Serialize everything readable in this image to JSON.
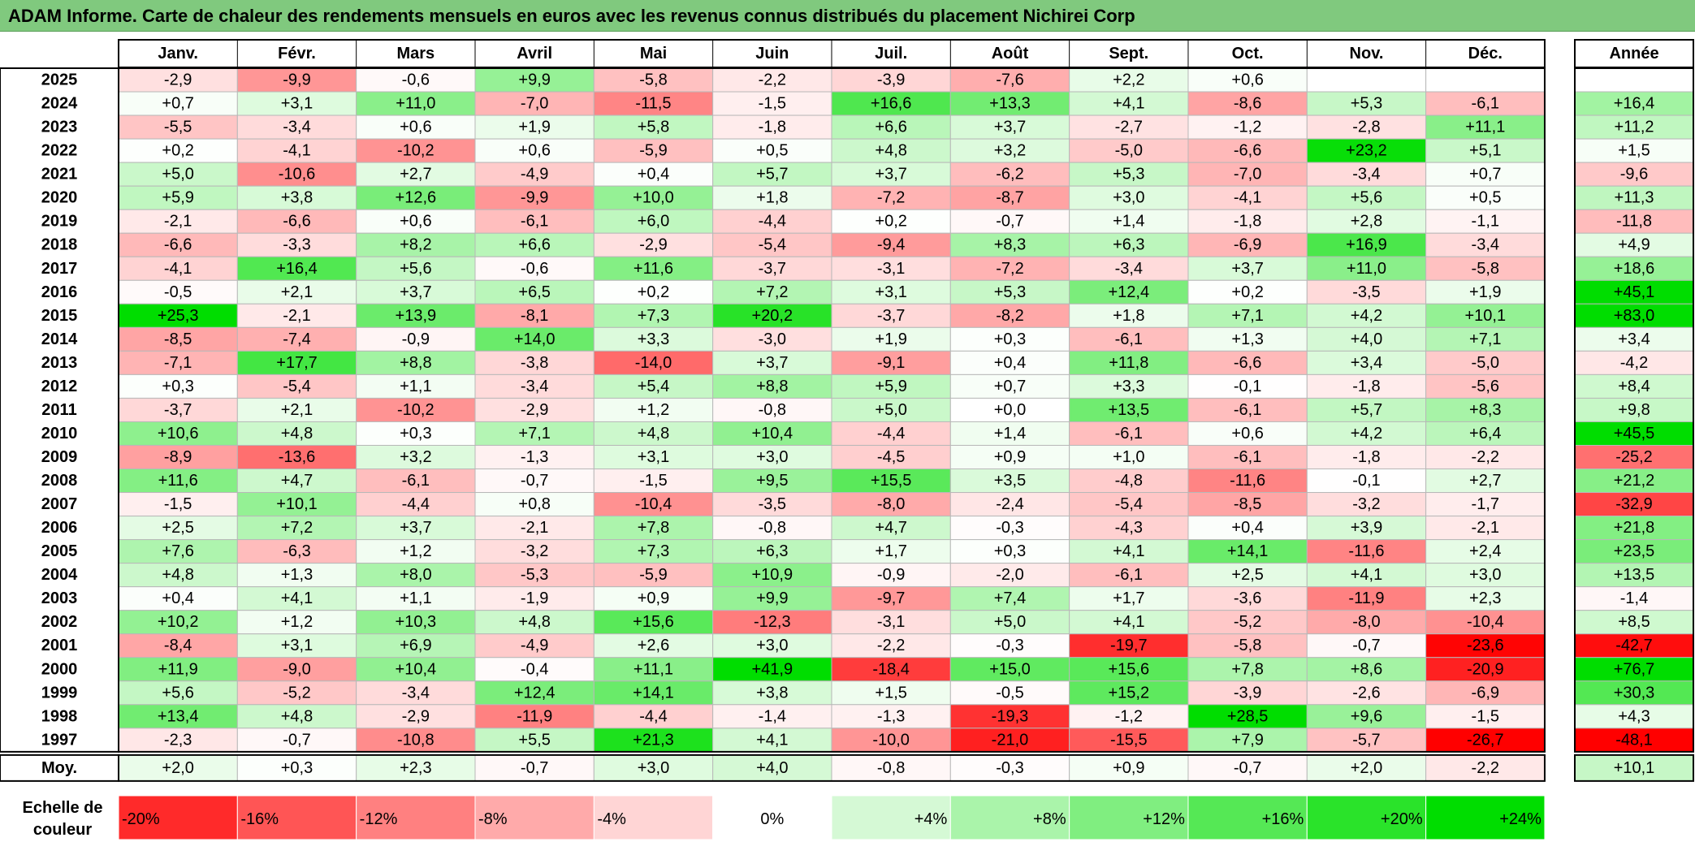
{
  "title": "ADAM Informe. Carte de chaleur des rendements mensuels en euros avec les revenus connus distribués du placement Nichirei Corp",
  "chart_data": {
    "type": "heatmap",
    "title": "ADAM Informe. Carte de chaleur des rendements mensuels en euros avec les revenus connus distribués du placement Nichirei Corp",
    "months": [
      "Janv.",
      "Févr.",
      "Mars",
      "Avril",
      "Mai",
      "Juin",
      "Juil.",
      "Août",
      "Sept.",
      "Oct.",
      "Nov.",
      "Déc."
    ],
    "year_header": "Année",
    "rows": [
      {
        "year": "2025",
        "values": [
          "-2,9",
          "-9,9",
          "-0,6",
          "+9,9",
          "-5,8",
          "-2,2",
          "-3,9",
          "-7,6",
          "+2,2",
          "+0,6",
          "",
          ""
        ],
        "annual": ""
      },
      {
        "year": "2024",
        "values": [
          "+0,7",
          "+3,1",
          "+11,0",
          "-7,0",
          "-11,5",
          "-1,5",
          "+16,6",
          "+13,3",
          "+4,1",
          "-8,6",
          "+5,3",
          "-6,1"
        ],
        "annual": "+16,4"
      },
      {
        "year": "2023",
        "values": [
          "-5,5",
          "-3,4",
          "+0,6",
          "+1,9",
          "+5,8",
          "-1,8",
          "+6,6",
          "+3,7",
          "-2,7",
          "-1,2",
          "-2,8",
          "+11,1"
        ],
        "annual": "+11,2"
      },
      {
        "year": "2022",
        "values": [
          "+0,2",
          "-4,1",
          "-10,2",
          "+0,6",
          "-5,9",
          "+0,5",
          "+4,8",
          "+3,2",
          "-5,0",
          "-6,6",
          "+23,2",
          "+5,1"
        ],
        "annual": "+1,5"
      },
      {
        "year": "2021",
        "values": [
          "+5,0",
          "-10,6",
          "+2,7",
          "-4,9",
          "+0,4",
          "+5,7",
          "+3,7",
          "-6,2",
          "+5,3",
          "-7,0",
          "-3,4",
          "+0,7"
        ],
        "annual": "-9,6"
      },
      {
        "year": "2020",
        "values": [
          "+5,9",
          "+3,8",
          "+12,6",
          "-9,9",
          "+10,0",
          "+1,8",
          "-7,2",
          "-8,7",
          "+3,0",
          "-4,1",
          "+5,6",
          "+0,5"
        ],
        "annual": "+11,3"
      },
      {
        "year": "2019",
        "values": [
          "-2,1",
          "-6,6",
          "+0,6",
          "-6,1",
          "+6,0",
          "-4,4",
          "+0,2",
          "-0,7",
          "+1,4",
          "-1,8",
          "+2,8",
          "-1,1"
        ],
        "annual": "-11,8"
      },
      {
        "year": "2018",
        "values": [
          "-6,6",
          "-3,3",
          "+8,2",
          "+6,6",
          "-2,9",
          "-5,4",
          "-9,4",
          "+8,3",
          "+6,3",
          "-6,9",
          "+16,9",
          "-3,4"
        ],
        "annual": "+4,9"
      },
      {
        "year": "2017",
        "values": [
          "-4,1",
          "+16,4",
          "+5,6",
          "-0,6",
          "+11,6",
          "-3,7",
          "-3,1",
          "-7,2",
          "-3,4",
          "+3,7",
          "+11,0",
          "-5,8"
        ],
        "annual": "+18,6"
      },
      {
        "year": "2016",
        "values": [
          "-0,5",
          "+2,1",
          "+3,7",
          "+6,5",
          "+0,2",
          "+7,2",
          "+3,1",
          "+5,3",
          "+12,4",
          "+0,2",
          "-3,5",
          "+1,9"
        ],
        "annual": "+45,1"
      },
      {
        "year": "2015",
        "values": [
          "+25,3",
          "-2,1",
          "+13,9",
          "-8,1",
          "+7,3",
          "+20,2",
          "-3,7",
          "-8,2",
          "+1,8",
          "+7,1",
          "+4,2",
          "+10,1"
        ],
        "annual": "+83,0"
      },
      {
        "year": "2014",
        "values": [
          "-8,5",
          "-7,4",
          "-0,9",
          "+14,0",
          "+3,3",
          "-3,0",
          "+1,9",
          "+0,3",
          "-6,1",
          "+1,3",
          "+4,0",
          "+7,1"
        ],
        "annual": "+3,4"
      },
      {
        "year": "2013",
        "values": [
          "-7,1",
          "+17,7",
          "+8,8",
          "-3,8",
          "-14,0",
          "+3,7",
          "-9,1",
          "+0,4",
          "+11,8",
          "-6,6",
          "+3,4",
          "-5,0"
        ],
        "annual": "-4,2"
      },
      {
        "year": "2012",
        "values": [
          "+0,3",
          "-5,4",
          "+1,1",
          "-3,4",
          "+5,4",
          "+8,8",
          "+5,9",
          "+0,7",
          "+3,3",
          "-0,1",
          "-1,8",
          "-5,6"
        ],
        "annual": "+8,4"
      },
      {
        "year": "2011",
        "values": [
          "-3,7",
          "+2,1",
          "-10,2",
          "-2,9",
          "+1,2",
          "-0,8",
          "+5,0",
          "+0,0",
          "+13,5",
          "-6,1",
          "+5,7",
          "+8,3"
        ],
        "annual": "+9,8"
      },
      {
        "year": "2010",
        "values": [
          "+10,6",
          "+4,8",
          "+0,3",
          "+7,1",
          "+4,8",
          "+10,4",
          "-4,4",
          "+1,4",
          "-6,1",
          "+0,6",
          "+4,2",
          "+6,4"
        ],
        "annual": "+45,5"
      },
      {
        "year": "2009",
        "values": [
          "-8,9",
          "-13,6",
          "+3,2",
          "-1,3",
          "+3,1",
          "+3,0",
          "-4,5",
          "+0,9",
          "+1,0",
          "-6,1",
          "-1,8",
          "-2,2"
        ],
        "annual": "-25,2"
      },
      {
        "year": "2008",
        "values": [
          "+11,6",
          "+4,7",
          "-6,1",
          "-0,7",
          "-1,5",
          "+9,5",
          "+15,5",
          "+3,5",
          "-4,8",
          "-11,6",
          "-0,1",
          "+2,7"
        ],
        "annual": "+21,2"
      },
      {
        "year": "2007",
        "values": [
          "-1,5",
          "+10,1",
          "-4,4",
          "+0,8",
          "-10,4",
          "-3,5",
          "-8,0",
          "-2,4",
          "-5,4",
          "-8,5",
          "-3,2",
          "-1,7"
        ],
        "annual": "-32,9"
      },
      {
        "year": "2006",
        "values": [
          "+2,5",
          "+7,2",
          "+3,7",
          "-2,1",
          "+7,8",
          "-0,8",
          "+4,7",
          "-0,3",
          "-4,3",
          "+0,4",
          "+3,9",
          "-2,1"
        ],
        "annual": "+21,8"
      },
      {
        "year": "2005",
        "values": [
          "+7,6",
          "-6,3",
          "+1,2",
          "-3,2",
          "+7,3",
          "+6,3",
          "+1,7",
          "+0,3",
          "+4,1",
          "+14,1",
          "-11,6",
          "+2,4"
        ],
        "annual": "+23,5"
      },
      {
        "year": "2004",
        "values": [
          "+4,8",
          "+1,3",
          "+8,0",
          "-5,3",
          "-5,9",
          "+10,9",
          "-0,9",
          "-2,0",
          "-6,1",
          "+2,5",
          "+4,1",
          "+3,0"
        ],
        "annual": "+13,5"
      },
      {
        "year": "2003",
        "values": [
          "+0,4",
          "+4,1",
          "+1,1",
          "-1,9",
          "+0,9",
          "+9,9",
          "-9,7",
          "+7,4",
          "+1,7",
          "-3,6",
          "-11,9",
          "+2,3"
        ],
        "annual": "-1,4"
      },
      {
        "year": "2002",
        "values": [
          "+10,2",
          "+1,2",
          "+10,3",
          "+4,8",
          "+15,6",
          "-12,3",
          "-3,1",
          "+5,0",
          "+4,1",
          "-5,2",
          "-8,0",
          "-10,4"
        ],
        "annual": "+8,5"
      },
      {
        "year": "2001",
        "values": [
          "-8,4",
          "+3,1",
          "+6,9",
          "-4,9",
          "+2,6",
          "+3,0",
          "-2,2",
          "-0,3",
          "-19,7",
          "-5,8",
          "-0,7",
          "-23,6"
        ],
        "annual": "-42,7"
      },
      {
        "year": "2000",
        "values": [
          "+11,9",
          "-9,0",
          "+10,4",
          "-0,4",
          "+11,1",
          "+41,9",
          "-18,4",
          "+15,0",
          "+15,6",
          "+7,8",
          "+8,6",
          "-20,9"
        ],
        "annual": "+76,7"
      },
      {
        "year": "1999",
        "values": [
          "+5,6",
          "-5,2",
          "-3,4",
          "+12,4",
          "+14,1",
          "+3,8",
          "+1,5",
          "-0,5",
          "+15,2",
          "-3,9",
          "-2,6",
          "-6,9"
        ],
        "annual": "+30,3"
      },
      {
        "year": "1998",
        "values": [
          "+13,4",
          "+4,8",
          "-2,9",
          "-11,9",
          "-4,4",
          "-1,4",
          "-1,3",
          "-19,3",
          "-1,2",
          "+28,5",
          "+9,6",
          "-1,5"
        ],
        "annual": "+4,3"
      },
      {
        "year": "1997",
        "values": [
          "-2,3",
          "-0,7",
          "-10,8",
          "+5,5",
          "+21,3",
          "+4,1",
          "-10,0",
          "-21,0",
          "-15,5",
          "+7,9",
          "-5,7",
          "-26,7"
        ],
        "annual": "-48,1"
      }
    ],
    "average": {
      "label": "Moy.",
      "values": [
        "+2,0",
        "+0,3",
        "+2,3",
        "-0,7",
        "+3,0",
        "+4,0",
        "-0,8",
        "-0,3",
        "+0,9",
        "-0,7",
        "+2,0",
        "-2,2"
      ],
      "annual": "+10,1"
    },
    "scale": {
      "label_line1": "Echelle de",
      "label_line2": "couleur",
      "steps": [
        {
          "label": "-20%",
          "value": -20
        },
        {
          "label": "-16%",
          "value": -16
        },
        {
          "label": "-12%",
          "value": -12
        },
        {
          "label": "-8%",
          "value": -8
        },
        {
          "label": "-4%",
          "value": -4
        },
        {
          "label": "0%",
          "value": 0
        },
        {
          "label": "+4%",
          "value": 4
        },
        {
          "label": "+8%",
          "value": 8
        },
        {
          "label": "+12%",
          "value": 12
        },
        {
          "label": "+16%",
          "value": 16
        },
        {
          "label": "+20%",
          "value": 20
        },
        {
          "label": "+24%",
          "value": 24
        }
      ]
    },
    "colors": {
      "title_bar": "#80c97e",
      "negative_max": "#ff0000",
      "positive_max": "#00dd00",
      "neutral": "#ffffff"
    }
  }
}
